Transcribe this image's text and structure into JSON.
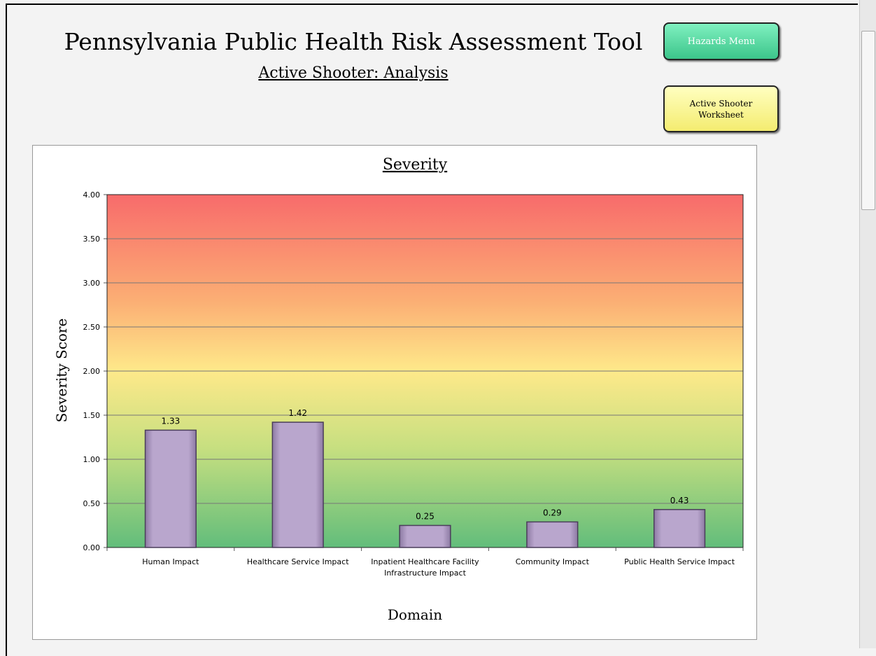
{
  "header": {
    "title": "Pennsylvania Public Health Risk Assessment Tool",
    "subtitle": "Active Shooter: Analysis"
  },
  "buttons": [
    "Hazards Menu",
    "Active Shooter Worksheet"
  ],
  "chart_data": {
    "type": "bar",
    "title": "Severity",
    "y_label": "Severity Score",
    "x_label": "Domain",
    "categories": [
      "Human Impact",
      "Healthcare Service Impact",
      "Inpatient Healthcare Facility Infrastructure Impact",
      "Community Impact",
      "Public Health Service Impact"
    ],
    "values": [
      1.33,
      1.42,
      0.25,
      0.29,
      0.43
    ],
    "color": "#b9a6cd",
    "ylim": [
      0,
      4
    ],
    "yticks": [
      {
        "value": 0,
        "label": "0.00"
      },
      {
        "value": 0.5,
        "label": "0.50"
      },
      {
        "value": 1,
        "label": "1.00"
      },
      {
        "value": 1.5,
        "label": "1.50"
      },
      {
        "value": 2,
        "label": "2.00"
      },
      {
        "value": 2.5,
        "label": "2.50"
      },
      {
        "value": 3,
        "label": "3.00"
      },
      {
        "value": 3.5,
        "label": "3.50"
      },
      {
        "value": 4,
        "label": "4.00"
      }
    ],
    "grid": true
  }
}
